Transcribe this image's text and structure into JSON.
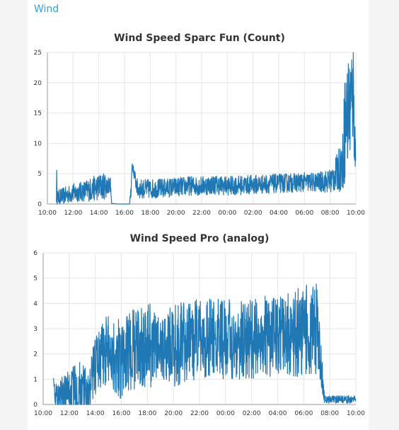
{
  "section": {
    "title": "Wind"
  },
  "colors": {
    "series": "#1f77b4",
    "section_title": "#29a3d8",
    "grid": "#e6e6e6"
  },
  "chart_data": [
    {
      "type": "line",
      "title": "Wind Speed Sparc Fun (Count)",
      "x_ticks": [
        "10:00",
        "12:00",
        "14:00",
        "16:00",
        "18:00",
        "20:00",
        "22:00",
        "00:00",
        "02:00",
        "04:00",
        "06:00",
        "08:00",
        "10:00"
      ],
      "y_ticks": [
        "0",
        "5",
        "10",
        "15",
        "20",
        "25"
      ],
      "ylim": [
        0,
        25
      ],
      "x_range_hours": [
        10,
        34
      ],
      "grid": true,
      "series": [
        {
          "x_hours": [
            10.7,
            10.72,
            10.75,
            11,
            11.5,
            12,
            12.5,
            13,
            13.5,
            14,
            14.5,
            14.9,
            15.0,
            15.5,
            16.0,
            16.4,
            16.5,
            16.6,
            17,
            18,
            19,
            20,
            21,
            22,
            23,
            24,
            25,
            26,
            27,
            28,
            29,
            30,
            31,
            32,
            32.5,
            33,
            33.1,
            33.5,
            33.8,
            34
          ],
          "values": [
            0.5,
            5.5,
            1,
            1.2,
            1.5,
            1.8,
            2,
            2.2,
            2.5,
            2.8,
            3,
            3.2,
            0.1,
            0,
            0,
            0,
            2.5,
            6.5,
            2.5,
            2.5,
            2.6,
            2.8,
            3,
            3,
            3.2,
            3,
            3.1,
            3.2,
            3.3,
            3.4,
            3.5,
            3.6,
            3.6,
            3.8,
            5,
            7,
            12,
            16,
            18,
            6
          ],
          "noise": [
            0.2,
            0.1,
            1.2,
            1.4,
            1.4,
            1.6,
            1.6,
            1.8,
            2,
            2.2,
            2.2,
            1.2,
            0,
            0,
            0,
            0,
            1.5,
            0.5,
            1.6,
            1.6,
            1.6,
            1.6,
            1.6,
            1.6,
            1.6,
            1.6,
            1.6,
            1.6,
            1.6,
            1.6,
            1.6,
            1.6,
            1.6,
            2,
            3,
            5,
            9,
            10,
            9,
            4
          ]
        }
      ]
    },
    {
      "type": "line",
      "title": "Wind Speed Pro (analog)",
      "x_ticks": [
        "10:00",
        "12:00",
        "14:00",
        "16:00",
        "18:00",
        "20:00",
        "22:00",
        "00:00",
        "02:00",
        "04:00",
        "06:00",
        "08:00",
        "10:00"
      ],
      "y_ticks": [
        "0",
        "1",
        "2",
        "3",
        "4",
        "5",
        "6"
      ],
      "ylim": [
        0,
        6
      ],
      "x_range_hours": [
        10,
        34
      ],
      "grid": true,
      "series": [
        {
          "x_hours": [
            10.8,
            10.9,
            11,
            12,
            12.5,
            13,
            13.5,
            14,
            14.5,
            15,
            16,
            17,
            18,
            19,
            20,
            21,
            22,
            23,
            24,
            25,
            26,
            27,
            28,
            29,
            30,
            30.5,
            31,
            31.4,
            31.6,
            32,
            33,
            33.5,
            34
          ],
          "values": [
            1.2,
            0.3,
            0.3,
            0.5,
            0.6,
            0.6,
            0.4,
            1.6,
            2,
            2.2,
            1.8,
            2.2,
            2.4,
            2.2,
            2.4,
            2.4,
            2.6,
            2.6,
            2.6,
            2.5,
            2.6,
            2.7,
            2.6,
            2.8,
            2.9,
            3,
            3,
            1.2,
            0.2,
            0.2,
            0.2,
            0.2,
            0.2
          ],
          "noise": [
            0.2,
            0.2,
            0.6,
            0.9,
            1.0,
            1.2,
            0.8,
            1.3,
            1.4,
            1.5,
            1.6,
            1.6,
            1.7,
            1.6,
            1.7,
            1.6,
            1.6,
            1.6,
            1.6,
            1.6,
            1.6,
            1.6,
            1.6,
            1.7,
            1.8,
            1.8,
            1.8,
            0.8,
            0.15,
            0.15,
            0.15,
            0.15,
            0.15
          ]
        }
      ]
    }
  ]
}
